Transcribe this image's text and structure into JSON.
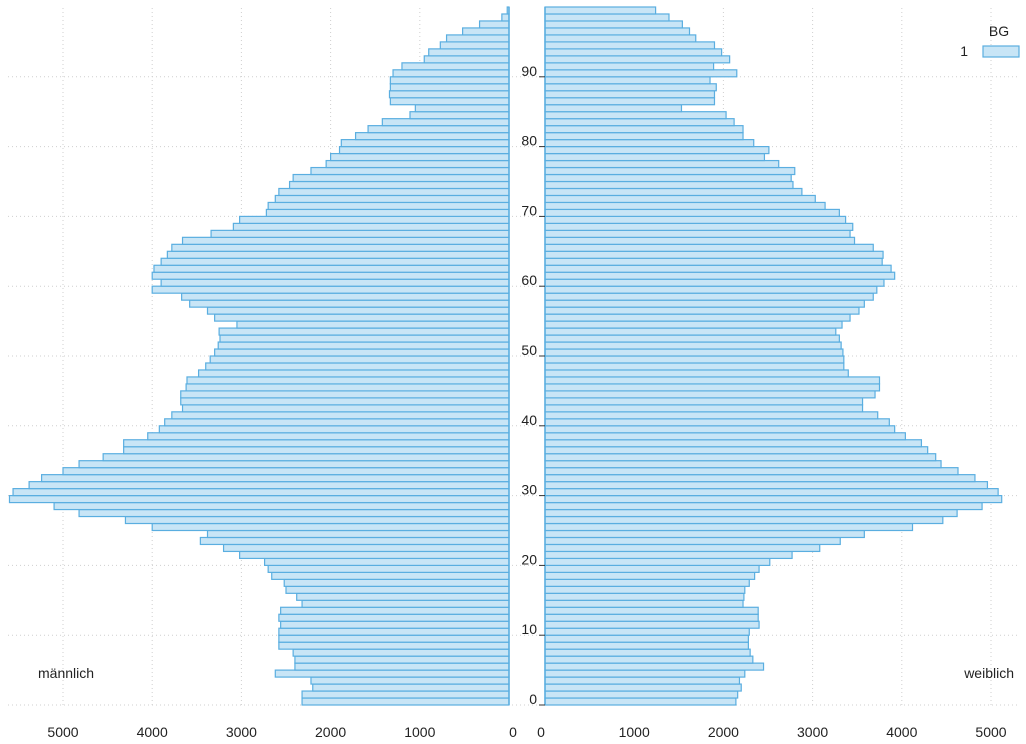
{
  "chart_data": {
    "type": "bar",
    "orientation": "horizontal-pyramid",
    "title": "",
    "xlabel": "",
    "ylabel": "",
    "age_ticks": [
      0,
      10,
      20,
      30,
      40,
      50,
      60,
      70,
      80,
      90
    ],
    "x_ticks_left": [
      5000,
      4000,
      3000,
      2000,
      1000,
      0
    ],
    "x_ticks_right": [
      0,
      1000,
      2000,
      3000,
      4000,
      5000
    ],
    "xlim": [
      0,
      5500
    ],
    "ylim": [
      0,
      99
    ],
    "grid": true,
    "legend": {
      "title": "BG",
      "entries": [
        "1"
      ],
      "position": "top-right"
    },
    "colors": {
      "fill": "#c8e5f6",
      "stroke": "#5aaee0"
    },
    "series": [
      {
        "name": "männlich",
        "ages": [
          0,
          1,
          2,
          3,
          4,
          5,
          6,
          7,
          8,
          9,
          10,
          11,
          12,
          13,
          14,
          15,
          16,
          17,
          18,
          19,
          20,
          21,
          22,
          23,
          24,
          25,
          26,
          27,
          28,
          29,
          30,
          31,
          32,
          33,
          34,
          35,
          36,
          37,
          38,
          39,
          40,
          41,
          42,
          43,
          44,
          45,
          46,
          47,
          48,
          49,
          50,
          51,
          52,
          53,
          54,
          55,
          56,
          57,
          58,
          59,
          60,
          61,
          62,
          63,
          64,
          65,
          66,
          67,
          68,
          69,
          70,
          71,
          72,
          73,
          74,
          75,
          76,
          77,
          78,
          79,
          80,
          81,
          82,
          83,
          84,
          85,
          86,
          87,
          88,
          89,
          90,
          91,
          92,
          93,
          94,
          95,
          96,
          97,
          98,
          99
        ],
        "values": [
          2320,
          2320,
          2200,
          2220,
          2620,
          2400,
          2400,
          2420,
          2580,
          2580,
          2580,
          2560,
          2580,
          2560,
          2320,
          2380,
          2500,
          2520,
          2660,
          2700,
          2740,
          3020,
          3200,
          3460,
          3380,
          4000,
          4300,
          4820,
          5100,
          5600,
          5560,
          5380,
          5240,
          5000,
          4820,
          4550,
          4320,
          4320,
          4050,
          3920,
          3860,
          3780,
          3660,
          3680,
          3680,
          3620,
          3610,
          3480,
          3400,
          3350,
          3300,
          3260,
          3240,
          3250,
          3050,
          3300,
          3380,
          3580,
          3670,
          4000,
          3900,
          4000,
          3980,
          3900,
          3830,
          3780,
          3660,
          3340,
          3090,
          3020,
          2720,
          2700,
          2620,
          2580,
          2460,
          2420,
          2220,
          2050,
          2000,
          1900,
          1880,
          1720,
          1580,
          1420,
          1110,
          1050,
          1330,
          1340,
          1330,
          1330,
          1300,
          1200,
          950,
          900,
          770,
          700,
          520,
          330,
          80,
          20
        ]
      },
      {
        "name": "weiblich",
        "ages": [
          0,
          1,
          2,
          3,
          4,
          5,
          6,
          7,
          8,
          9,
          10,
          11,
          12,
          13,
          14,
          15,
          16,
          17,
          18,
          19,
          20,
          21,
          22,
          23,
          24,
          25,
          26,
          27,
          28,
          29,
          30,
          31,
          32,
          33,
          34,
          35,
          36,
          37,
          38,
          39,
          40,
          41,
          42,
          43,
          44,
          45,
          46,
          47,
          48,
          49,
          50,
          51,
          52,
          53,
          54,
          55,
          56,
          57,
          58,
          59,
          60,
          61,
          62,
          63,
          64,
          65,
          66,
          67,
          68,
          69,
          70,
          71,
          72,
          73,
          74,
          75,
          76,
          77,
          78,
          79,
          80,
          81,
          82,
          83,
          84,
          85,
          86,
          87,
          88,
          89,
          90,
          91,
          92,
          93,
          94,
          95,
          96,
          97,
          98,
          99
        ],
        "values": [
          2140,
          2160,
          2200,
          2180,
          2240,
          2450,
          2330,
          2300,
          2280,
          2280,
          2290,
          2400,
          2390,
          2390,
          2220,
          2230,
          2240,
          2290,
          2350,
          2400,
          2520,
          2770,
          3080,
          3310,
          3580,
          4120,
          4460,
          4620,
          4900,
          5120,
          5080,
          4960,
          4820,
          4630,
          4440,
          4380,
          4290,
          4220,
          4040,
          3920,
          3860,
          3730,
          3560,
          3560,
          3700,
          3750,
          3750,
          3400,
          3350,
          3350,
          3340,
          3320,
          3300,
          3260,
          3330,
          3420,
          3520,
          3580,
          3680,
          3720,
          3800,
          3920,
          3880,
          3780,
          3790,
          3680,
          3470,
          3420,
          3450,
          3370,
          3300,
          3140,
          3030,
          2880,
          2780,
          2760,
          2800,
          2620,
          2460,
          2510,
          2340,
          2220,
          2220,
          2120,
          2030,
          1530,
          1900,
          1900,
          1920,
          1850,
          2150,
          1890,
          2070,
          1980,
          1900,
          1690,
          1620,
          1540,
          1390,
          1240
        ]
      }
    ],
    "side_labels": {
      "left": "männlich",
      "right": "weiblich"
    }
  }
}
